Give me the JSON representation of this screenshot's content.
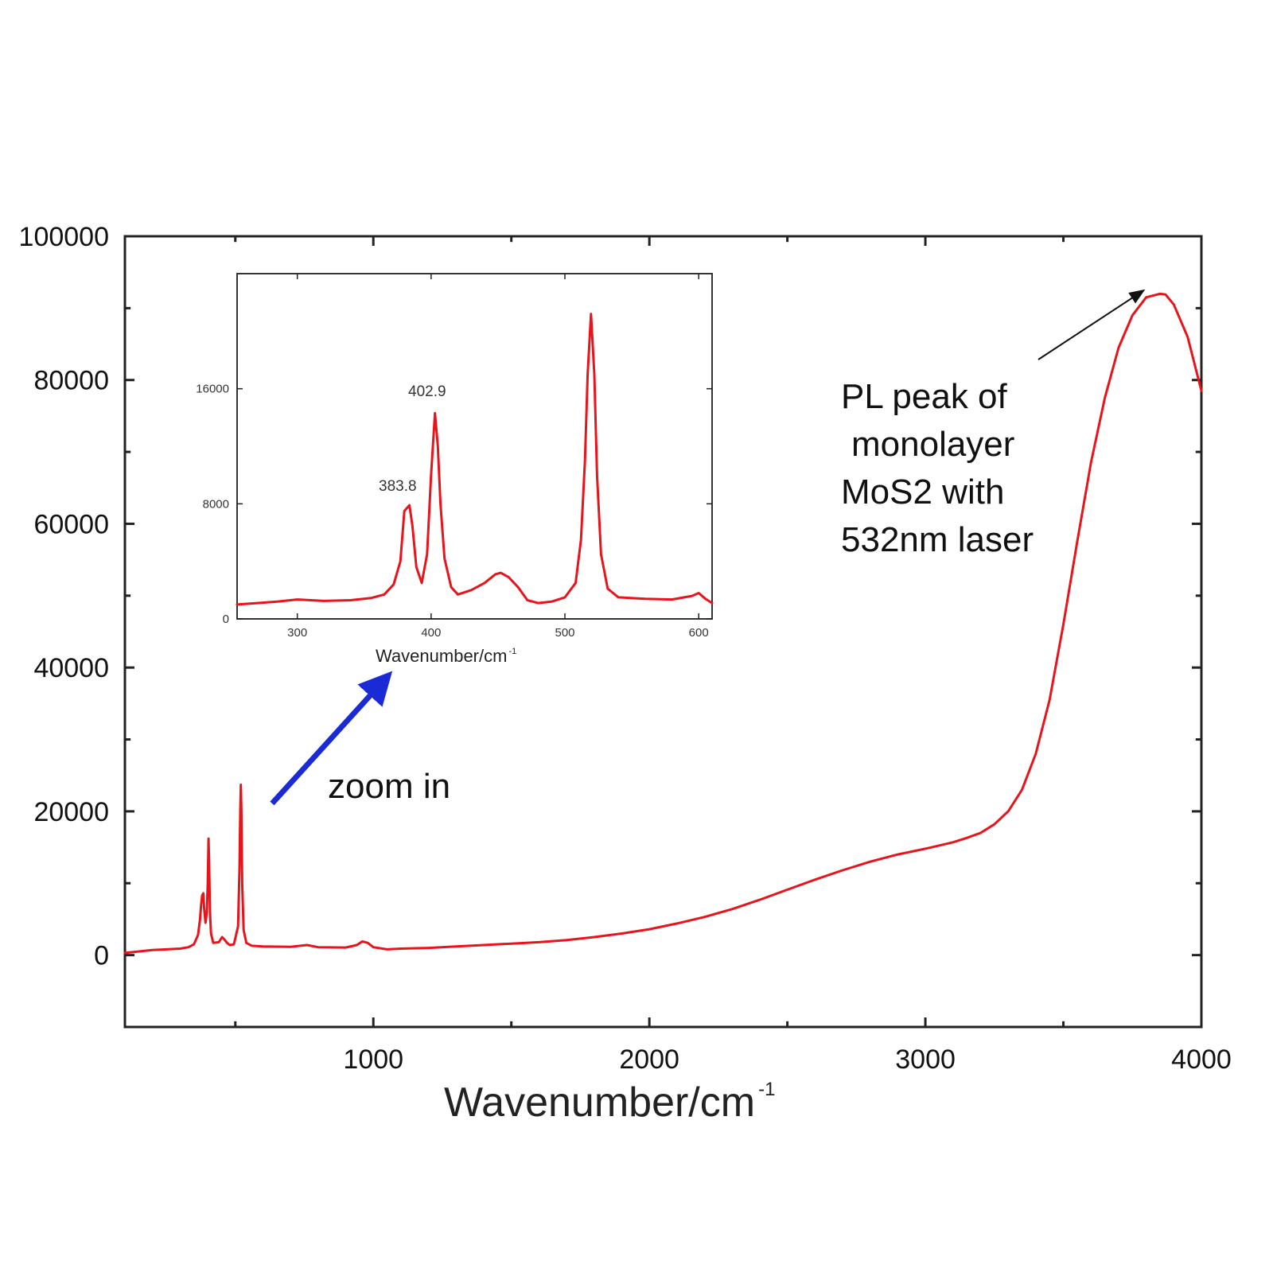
{
  "chart_data": [
    {
      "id": "main",
      "type": "line",
      "xlabel": "Wavenumber/cm",
      "xlabel_sup": "-1",
      "ylabel": "",
      "xlim": [
        100,
        4000
      ],
      "ylim": [
        -10000,
        100000
      ],
      "xticks": [
        1000,
        2000,
        3000,
        4000
      ],
      "yticks": [
        0,
        20000,
        40000,
        60000,
        80000,
        100000
      ],
      "grid": false,
      "color": "#e8141b",
      "series": [
        {
          "x": [
            100,
            200,
            300,
            330,
            350,
            365,
            372,
            376,
            380,
            383.8,
            387,
            392,
            397,
            400,
            402.9,
            405,
            408,
            412,
            420,
            440,
            452,
            460,
            470,
            480,
            495,
            510,
            515,
            518,
            520,
            522,
            525,
            530,
            540,
            560,
            600,
            700,
            760,
            800,
            900,
            940,
            960,
            980,
            1000,
            1050,
            1100,
            1200,
            1300,
            1400,
            1500,
            1600,
            1700,
            1800,
            1900,
            2000,
            2100,
            2200,
            2300,
            2400,
            2500,
            2600,
            2700,
            2800,
            2900,
            3000,
            3100,
            3150,
            3200,
            3250,
            3300,
            3350,
            3400,
            3450,
            3500,
            3550,
            3600,
            3650,
            3700,
            3750,
            3800,
            3850,
            3870,
            3900,
            3950,
            4000
          ],
          "y": [
            300,
            700,
            900,
            1100,
            1500,
            2800,
            5000,
            7000,
            8300,
            8600,
            6500,
            4500,
            6000,
            10000,
            16200,
            13000,
            6000,
            3000,
            1700,
            1800,
            2500,
            2200,
            1700,
            1400,
            1500,
            4000,
            12000,
            20000,
            23700,
            20000,
            10000,
            3500,
            1700,
            1300,
            1200,
            1150,
            1400,
            1100,
            1050,
            1400,
            1900,
            1700,
            1100,
            800,
            900,
            1000,
            1200,
            1400,
            1600,
            1800,
            2100,
            2500,
            3000,
            3600,
            4400,
            5300,
            6400,
            7700,
            9100,
            10500,
            11800,
            13000,
            14000,
            14800,
            15700,
            16300,
            17000,
            18200,
            20000,
            23000,
            28000,
            35500,
            46000,
            57500,
            68500,
            77500,
            84500,
            89000,
            91500,
            92000,
            91900,
            90500,
            86000,
            78500
          ]
        }
      ],
      "annotations": [
        {
          "text": "zoom in"
        },
        {
          "lines": [
            "PL peak of",
            "monolayer",
            "MoS2 with",
            "532nm laser"
          ]
        }
      ]
    },
    {
      "id": "inset",
      "type": "line",
      "xlabel": "Wavenumber/cm",
      "xlabel_sup": "-1",
      "xlim": [
        255,
        610
      ],
      "ylim": [
        0,
        24000
      ],
      "xticks": [
        300,
        400,
        500,
        600
      ],
      "yticks": [
        0,
        8000,
        16000
      ],
      "ytick_labels": [
        "0",
        "8000",
        "16000"
      ],
      "color": "#e8141b",
      "peak_labels": [
        "383.8",
        "402.9"
      ],
      "series": [
        {
          "x": [
            255,
            270,
            285,
            300,
            320,
            340,
            355,
            365,
            372,
            377,
            380,
            383.8,
            386,
            389,
            393,
            397,
            400,
            402.9,
            405,
            407,
            410,
            415,
            420,
            430,
            440,
            448,
            452,
            458,
            465,
            472,
            480,
            490,
            500,
            508,
            512,
            515,
            517,
            519.5,
            522,
            524,
            527,
            532,
            540,
            560,
            580,
            595,
            600,
            605,
            610
          ],
          "y": [
            1000,
            1100,
            1200,
            1350,
            1250,
            1300,
            1450,
            1700,
            2400,
            4000,
            7500,
            7900,
            6500,
            3600,
            2500,
            4500,
            10000,
            14300,
            12000,
            8000,
            4200,
            2200,
            1700,
            2000,
            2500,
            3100,
            3200,
            2900,
            2200,
            1300,
            1100,
            1200,
            1500,
            2500,
            5500,
            11000,
            17000,
            21200,
            17000,
            10000,
            4500,
            2100,
            1500,
            1400,
            1350,
            1600,
            1800,
            1400,
            1100
          ]
        }
      ]
    }
  ]
}
